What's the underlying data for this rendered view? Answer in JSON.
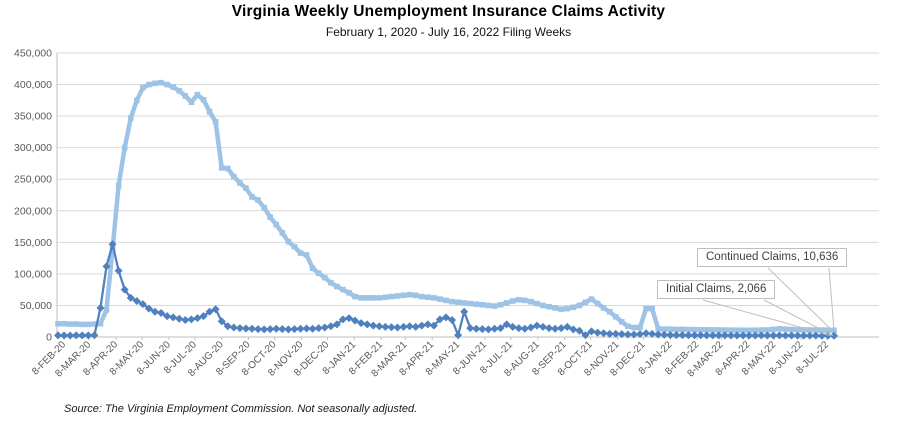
{
  "header": {
    "title": "Virginia Weekly Unemployment Insurance Claims Activity",
    "subtitle": "February 1, 2020 - July 16, 2022 Filing Weeks"
  },
  "callouts": {
    "continued": "Continued Claims, 10,636",
    "initial": "Initial Claims, 2,066"
  },
  "source_note": "Source: The Virginia Employment Commission. Not seasonally adjusted.",
  "colors": {
    "continued_series": "#9DC3E6",
    "initial_series": "#4E81BD",
    "gridline": "#D9D9D9",
    "axis_line": "#BFBFBF",
    "axis_text": "#595959",
    "leader_line": "#BFBFBF"
  },
  "chart_data": {
    "type": "line",
    "title": "Virginia Weekly Unemployment Insurance Claims Activity",
    "subtitle": "February 1, 2020 - July 16, 2022 Filing Weeks",
    "frequency": "weekly",
    "start_date": "2020-02-01",
    "end_date": "2022-07-16",
    "ylim": [
      0,
      450000
    ],
    "y_tick_step": 50000,
    "grid": "horizontal",
    "legend_position": "none (labeled via callouts on last points)",
    "x_tick_labels": [
      "8-FEB-20",
      "8-MAR-20",
      "8-APR-20",
      "8-MAY-20",
      "8-JUN-20",
      "8-JUL-20",
      "8-AUG-20",
      "8-SEP-20",
      "8-OCT-20",
      "8-NOV-20",
      "8-DEC-20",
      "8-JAN-21",
      "8-FEB-21",
      "8-MAR-21",
      "8-APR-21",
      "8-MAY-21",
      "8-JUN-21",
      "8-JUL-21",
      "8-AUG-21",
      "8-SEP-21",
      "8-OCT-21",
      "8-NOV-21",
      "8-DEC-21",
      "8-JAN-22",
      "8-FEB-22",
      "8-MAR-22",
      "8-APR-22",
      "8-MAY-22",
      "8-JUN-22",
      "8-JUL-22"
    ],
    "series": [
      {
        "name": "Continued Claims",
        "marker": "square",
        "color": "#9DC3E6",
        "last_value": 10636,
        "values": [
          21000,
          21000,
          20500,
          20500,
          20000,
          20000,
          20500,
          21000,
          43000,
          140000,
          240000,
          300000,
          347000,
          375000,
          395000,
          400000,
          402000,
          403000,
          400000,
          396000,
          390000,
          382000,
          372000,
          384000,
          376000,
          357000,
          341000,
          268000,
          267000,
          254000,
          244000,
          236000,
          222000,
          217000,
          205000,
          190000,
          178000,
          165000,
          151000,
          143000,
          133000,
          130000,
          109000,
          101000,
          94000,
          86000,
          80000,
          75000,
          70000,
          64000,
          62000,
          62000,
          62000,
          62000,
          63000,
          64000,
          65000,
          66000,
          67000,
          66000,
          64000,
          63000,
          62000,
          60000,
          58000,
          56000,
          55000,
          54000,
          53000,
          52000,
          51000,
          50000,
          49000,
          51000,
          54000,
          57000,
          59000,
          58000,
          56000,
          53000,
          50000,
          48000,
          46000,
          44000,
          45000,
          47000,
          50000,
          55000,
          60000,
          53000,
          46000,
          40000,
          32000,
          24000,
          17000,
          15000,
          15000,
          45000,
          45000,
          13000,
          12500,
          12500,
          12000,
          12000,
          11800,
          11600,
          11500,
          11400,
          11300,
          11200,
          11000,
          10900,
          10800,
          10700,
          10700,
          10800,
          11000,
          11200,
          12000,
          13000,
          12500,
          12000,
          11600,
          11300,
          11200,
          11100,
          11000,
          10800,
          10636
        ]
      },
      {
        "name": "Initial Claims",
        "marker": "diamond",
        "color": "#4E81BD",
        "last_value": 2066,
        "values": [
          2500,
          2600,
          2400,
          2500,
          2600,
          2500,
          2700,
          46000,
          112000,
          147000,
          105000,
          75000,
          62000,
          57000,
          52000,
          45000,
          40000,
          38000,
          33000,
          31000,
          29000,
          27000,
          28000,
          30000,
          33000,
          40000,
          44000,
          25000,
          17000,
          15000,
          14000,
          13500,
          13000,
          12500,
          12000,
          12500,
          13000,
          12500,
          12000,
          12500,
          13000,
          13500,
          13000,
          14000,
          15000,
          17000,
          20000,
          28000,
          30000,
          26000,
          22000,
          20000,
          18000,
          17000,
          16000,
          15500,
          15000,
          16000,
          17000,
          16000,
          18000,
          20000,
          18000,
          28000,
          31000,
          27000,
          3000,
          40000,
          14000,
          13000,
          12500,
          12000,
          13000,
          14000,
          20000,
          16000,
          14000,
          13000,
          15000,
          18000,
          16000,
          14000,
          13000,
          14000,
          16000,
          12000,
          10000,
          3000,
          9000,
          7000,
          6000,
          5000,
          5000,
          4500,
          4000,
          4000,
          4500,
          6000,
          5000,
          4000,
          3500,
          3200,
          3000,
          2900,
          2800,
          2700,
          2700,
          2600,
          2600,
          2500,
          2500,
          2400,
          2400,
          2300,
          2300,
          2400,
          2500,
          2400,
          2300,
          2500,
          2400,
          2300,
          2200,
          2200,
          2100,
          2100,
          2000,
          2100,
          2066
        ]
      }
    ]
  }
}
